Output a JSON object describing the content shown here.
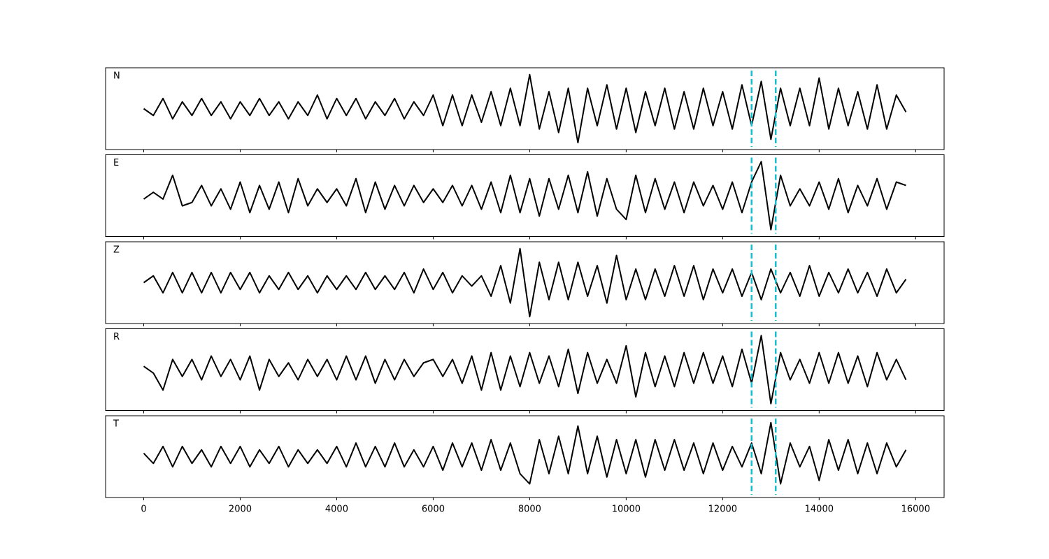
{
  "chart_data": {
    "type": "line",
    "x": [
      0,
      200,
      400,
      600,
      800,
      1000,
      1200,
      1400,
      1600,
      1800,
      2000,
      2200,
      2400,
      2600,
      2800,
      3000,
      3200,
      3400,
      3600,
      3800,
      4000,
      4200,
      4400,
      4600,
      4800,
      5000,
      5200,
      5400,
      5600,
      5800,
      6000,
      6200,
      6400,
      6600,
      6800,
      7000,
      7200,
      7400,
      7600,
      7800,
      8000,
      8200,
      8400,
      8600,
      8800,
      9000,
      9200,
      9400,
      9600,
      9800,
      10000,
      10200,
      10400,
      10600,
      10800,
      11000,
      11200,
      11400,
      11600,
      11800,
      12000,
      12200,
      12400,
      12600,
      12800,
      13000,
      13200,
      13400,
      13600,
      13800,
      14000,
      14200,
      14400,
      14600,
      14800,
      15000,
      15200,
      15400,
      15600,
      15800
    ],
    "series": [
      {
        "name": "N",
        "color": "#000000",
        "values": [
          0,
          -2,
          3,
          -3,
          2,
          -2,
          3,
          -2,
          2,
          -3,
          2,
          -2,
          3,
          -2,
          2,
          -3,
          2,
          -2,
          4,
          -3,
          3,
          -2,
          3,
          -3,
          2,
          -2,
          3,
          -3,
          2,
          -2,
          4,
          -5,
          4,
          -5,
          4,
          -4,
          5,
          -5,
          6,
          -5,
          10,
          -6,
          5,
          -7,
          6,
          -10,
          6,
          -5,
          7,
          -6,
          6,
          -7,
          5,
          -5,
          6,
          -6,
          5,
          -6,
          6,
          -5,
          5,
          -6,
          7,
          -5,
          8,
          -9,
          6,
          -5,
          6,
          -5,
          9,
          -6,
          6,
          -5,
          5,
          -6,
          7,
          -6,
          4,
          -1
        ]
      },
      {
        "name": "E",
        "color": "#000000",
        "values": [
          -1,
          1,
          -1,
          6,
          -3,
          -2,
          3,
          -3,
          2,
          -4,
          4,
          -5,
          3,
          -4,
          4,
          -5,
          5,
          -3,
          2,
          -2,
          2,
          -3,
          5,
          -5,
          4,
          -4,
          3,
          -3,
          3,
          -2,
          2,
          -2,
          3,
          -3,
          3,
          -4,
          4,
          -5,
          6,
          -5,
          5,
          -6,
          5,
          -4,
          6,
          -5,
          7,
          -6,
          5,
          -4,
          -7,
          6,
          -5,
          5,
          -4,
          4,
          -5,
          4,
          -3,
          3,
          -4,
          4,
          -5,
          4,
          10,
          -10,
          6,
          -3,
          2,
          -3,
          4,
          -4,
          5,
          -5,
          3,
          -3,
          5,
          -4,
          4,
          3
        ]
      },
      {
        "name": "Z",
        "color": "#000000",
        "values": [
          0,
          2,
          -3,
          3,
          -3,
          3,
          -3,
          3,
          -3,
          3,
          -2,
          3,
          -3,
          2,
          -2,
          3,
          -2,
          2,
          -3,
          2,
          -2,
          2,
          -2,
          3,
          -2,
          2,
          -2,
          3,
          -3,
          4,
          -2,
          3,
          -3,
          2,
          -1,
          2,
          -4,
          5,
          -6,
          10,
          -10,
          6,
          -5,
          6,
          -5,
          6,
          -4,
          5,
          -6,
          8,
          -5,
          4,
          -5,
          4,
          -4,
          5,
          -4,
          5,
          -5,
          4,
          -3,
          4,
          -4,
          3,
          -5,
          4,
          -3,
          3,
          -4,
          5,
          -4,
          3,
          -3,
          4,
          -3,
          3,
          -4,
          4,
          -3,
          1
        ]
      },
      {
        "name": "R",
        "color": "#000000",
        "values": [
          1,
          -1,
          -6,
          3,
          -2,
          3,
          -3,
          4,
          -2,
          3,
          -3,
          4,
          -6,
          3,
          -2,
          2,
          -3,
          3,
          -2,
          3,
          -3,
          4,
          -3,
          4,
          -4,
          3,
          -3,
          3,
          -2,
          2,
          3,
          -2,
          3,
          -4,
          4,
          -6,
          5,
          -6,
          4,
          -5,
          5,
          -4,
          4,
          -5,
          6,
          -7,
          5,
          -4,
          3,
          -4,
          7,
          -8,
          5,
          -5,
          4,
          -5,
          5,
          -4,
          5,
          -4,
          4,
          -5,
          6,
          -4,
          10,
          -10,
          5,
          -3,
          3,
          -4,
          5,
          -4,
          5,
          -4,
          4,
          -5,
          5,
          -3,
          3,
          -3
        ]
      },
      {
        "name": "T",
        "color": "#000000",
        "values": [
          1,
          -2,
          3,
          -3,
          3,
          -2,
          2,
          -3,
          3,
          -2,
          3,
          -3,
          2,
          -2,
          3,
          -3,
          2,
          -2,
          2,
          -2,
          3,
          -3,
          4,
          -3,
          3,
          -3,
          4,
          -3,
          2,
          -3,
          3,
          -4,
          4,
          -3,
          4,
          -4,
          5,
          -4,
          4,
          -5,
          -8,
          5,
          -5,
          6,
          -5,
          9,
          -5,
          6,
          -6,
          5,
          -5,
          5,
          -6,
          5,
          -4,
          5,
          -4,
          4,
          -5,
          4,
          -4,
          3,
          -3,
          4,
          -5,
          10,
          -8,
          4,
          -3,
          3,
          -7,
          5,
          -4,
          5,
          -5,
          4,
          -5,
          4,
          -3,
          2
        ]
      }
    ],
    "vlines": [
      12600,
      13100
    ],
    "vline_color": "#17becf",
    "xlim": [
      -790,
      16590
    ],
    "xticks": [
      0,
      2000,
      4000,
      6000,
      8000,
      10000,
      12000,
      14000,
      16000
    ],
    "ylim": [
      -12,
      12
    ]
  }
}
